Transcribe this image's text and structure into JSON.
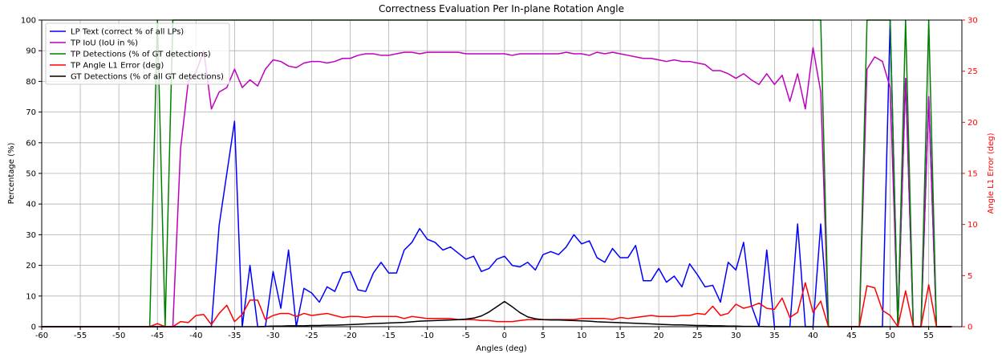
{
  "chart_data": {
    "type": "line",
    "title": "Correctness Evaluation Per In-plane Rotation Angle",
    "xlabel": "Angles (deg)",
    "ylabel": "Percentage (%)",
    "y2label": "Angle L1 Error (deg)",
    "x": [
      -60,
      -59,
      -58,
      -57,
      -56,
      -55,
      -54,
      -53,
      -52,
      -51,
      -50,
      -49,
      -48,
      -47,
      -46,
      -45,
      -44,
      -43,
      -42,
      -41,
      -40,
      -39,
      -38,
      -37,
      -36,
      -35,
      -34,
      -33,
      -32,
      -31,
      -30,
      -29,
      -28,
      -27,
      -26,
      -25,
      -24,
      -23,
      -22,
      -21,
      -20,
      -19,
      -18,
      -17,
      -16,
      -15,
      -14,
      -13,
      -12,
      -11,
      -10,
      -9,
      -8,
      -7,
      -6,
      -5,
      -4,
      -3,
      -2,
      -1,
      0,
      1,
      2,
      3,
      4,
      5,
      6,
      7,
      8,
      9,
      10,
      11,
      12,
      13,
      14,
      15,
      16,
      17,
      18,
      19,
      20,
      21,
      22,
      23,
      24,
      25,
      26,
      27,
      28,
      29,
      30,
      31,
      32,
      33,
      34,
      35,
      36,
      37,
      38,
      39,
      40,
      41,
      42,
      43,
      44,
      45,
      46,
      47,
      48,
      49,
      50,
      51,
      52,
      53,
      54,
      55,
      56,
      57,
      58
    ],
    "xlim": [
      -60,
      59.3
    ],
    "xticks": [
      -60,
      -55,
      -50,
      -45,
      -40,
      -35,
      -30,
      -25,
      -20,
      -15,
      -10,
      -5,
      0,
      5,
      10,
      15,
      20,
      25,
      30,
      35,
      40,
      45,
      50,
      55
    ],
    "ylim": [
      0,
      100
    ],
    "yticks": [
      0,
      10,
      20,
      30,
      40,
      50,
      60,
      70,
      80,
      90,
      100
    ],
    "y2lim": [
      0,
      30
    ],
    "y2ticks": [
      0,
      5,
      10,
      15,
      20,
      25,
      30
    ],
    "grid": true,
    "legend": "upper left",
    "series": [
      {
        "name": "LP Text (correct % of all LPs)",
        "color": "#0000ff",
        "values": [
          0,
          0,
          0,
          0,
          0,
          0,
          0,
          0,
          0,
          0,
          0,
          0,
          0,
          0,
          0,
          0,
          0,
          0,
          0,
          0,
          0,
          0,
          0,
          33,
          50,
          67,
          0,
          20,
          0,
          0,
          18,
          6,
          25,
          0,
          12.5,
          11,
          8,
          13,
          11.5,
          17.5,
          18,
          12,
          11.5,
          17.5,
          21,
          17.5,
          17.5,
          25,
          27.5,
          32,
          28.5,
          27.5,
          25,
          26,
          24,
          22,
          23,
          18,
          19,
          22,
          23,
          20,
          19.5,
          21,
          18.5,
          23.5,
          24.5,
          23.5,
          26,
          30,
          27,
          28,
          22.5,
          21,
          25.5,
          22.5,
          22.5,
          26.5,
          15,
          15,
          19,
          14.5,
          16.5,
          13,
          20.5,
          17,
          13,
          13.5,
          8,
          21,
          18.5,
          27.5,
          7,
          0,
          25,
          0,
          0,
          0,
          33.5,
          0,
          0,
          33.5,
          0,
          0,
          0,
          0,
          0,
          0,
          0,
          0,
          100,
          0,
          81,
          0,
          0,
          75,
          0,
          0,
          0
        ]
      },
      {
        "name": "TP IoU (IoU in %)",
        "color": "#bf00bf",
        "values": [
          0,
          0,
          0,
          0,
          0,
          0,
          0,
          0,
          0,
          0,
          0,
          0,
          0,
          0,
          0,
          0,
          0,
          0,
          58,
          80,
          83,
          90,
          71,
          76.5,
          78,
          84,
          78,
          80.5,
          78.5,
          84,
          87,
          86.5,
          85,
          84.5,
          86,
          86.5,
          86.5,
          86,
          86.5,
          87.5,
          87.5,
          88.5,
          89,
          89,
          88.5,
          88.5,
          89,
          89.5,
          89.5,
          89,
          89.5,
          89.5,
          89.5,
          89.5,
          89.5,
          89,
          89,
          89,
          89,
          89,
          89,
          88.5,
          89,
          89,
          89,
          89,
          89,
          89,
          89.5,
          89,
          89,
          88.5,
          89.5,
          89,
          89.5,
          89,
          88.5,
          88,
          87.5,
          87.5,
          87,
          86.5,
          87,
          86.5,
          86.5,
          86,
          85.5,
          83.5,
          83.5,
          82.5,
          81,
          82.5,
          80.5,
          79,
          82.5,
          79,
          82,
          73.5,
          82.5,
          71,
          91,
          76.5,
          0,
          0,
          0,
          0,
          0,
          84,
          88,
          86.5,
          78,
          0,
          81,
          0,
          0,
          75,
          0,
          0,
          0
        ]
      },
      {
        "name": "TP Detections (% of GT detections)",
        "color": "#008000",
        "values": [
          0,
          0,
          0,
          0,
          0,
          0,
          0,
          0,
          0,
          0,
          0,
          0,
          0,
          0,
          0,
          100,
          0,
          100,
          100,
          100,
          100,
          100,
          100,
          100,
          100,
          100,
          100,
          100,
          100,
          100,
          100,
          100,
          100,
          100,
          100,
          100,
          100,
          100,
          100,
          100,
          100,
          100,
          100,
          100,
          100,
          100,
          100,
          100,
          100,
          100,
          100,
          100,
          100,
          100,
          100,
          100,
          100,
          100,
          100,
          100,
          100,
          100,
          100,
          100,
          100,
          100,
          100,
          100,
          100,
          100,
          100,
          100,
          100,
          100,
          100,
          100,
          100,
          100,
          100,
          100,
          100,
          100,
          100,
          100,
          100,
          100,
          100,
          100,
          100,
          100,
          100,
          100,
          100,
          100,
          100,
          100,
          100,
          100,
          100,
          100,
          100,
          100,
          0,
          0,
          0,
          0,
          0,
          100,
          100,
          100,
          100,
          0,
          100,
          0,
          0,
          100,
          0,
          0,
          0
        ]
      },
      {
        "name": "TP Angle L1 Error (deg)",
        "color": "#ff0000",
        "axis": "y2",
        "values": [
          0,
          0,
          0,
          0,
          0,
          0,
          0,
          0,
          0,
          0,
          0,
          0,
          0,
          0,
          0,
          0.3,
          0,
          0,
          0.5,
          0.4,
          1.1,
          1.2,
          0.2,
          1.3,
          2.1,
          0.5,
          1.2,
          2.6,
          2.6,
          0.7,
          1.1,
          1.3,
          1.3,
          1.0,
          1.3,
          1.1,
          1.2,
          1.3,
          1.1,
          0.9,
          1.0,
          1.0,
          0.9,
          1.0,
          1.0,
          1.0,
          1.0,
          0.8,
          1.0,
          0.9,
          0.8,
          0.8,
          0.8,
          0.8,
          0.7,
          0.7,
          0.7,
          0.6,
          0.6,
          0.5,
          0.5,
          0.5,
          0.6,
          0.7,
          0.7,
          0.7,
          0.7,
          0.7,
          0.7,
          0.7,
          0.8,
          0.8,
          0.8,
          0.8,
          0.7,
          0.9,
          0.8,
          0.9,
          1.0,
          1.1,
          1.0,
          1.0,
          1.0,
          1.1,
          1.1,
          1.3,
          1.2,
          2.0,
          1.1,
          1.3,
          2.2,
          1.8,
          2.0,
          2.3,
          1.8,
          1.7,
          2.8,
          0.9,
          1.4,
          4.3,
          1.4,
          2.5,
          0,
          0,
          0,
          0,
          0,
          4.0,
          3.8,
          1.6,
          1.1,
          0,
          3.5,
          0,
          0,
          4.1,
          0,
          0,
          0
        ]
      },
      {
        "name": "GT Detections (% of all GT detections)",
        "color": "#000000",
        "values": [
          0,
          0,
          0,
          0,
          0,
          0,
          0,
          0,
          0,
          0,
          0,
          0,
          0,
          0,
          0,
          0,
          0,
          0,
          0,
          0,
          0,
          0,
          0,
          0,
          0,
          0,
          0,
          0,
          0,
          0.1,
          0.2,
          0.2,
          0.3,
          0.3,
          0.3,
          0.4,
          0.4,
          0.5,
          0.5,
          0.6,
          0.7,
          0.8,
          0.9,
          1.0,
          1.1,
          1.2,
          1.3,
          1.4,
          1.6,
          1.8,
          1.9,
          2.0,
          2.1,
          2.2,
          2.3,
          2.5,
          2.8,
          3.5,
          4.8,
          6.5,
          8.2,
          6.5,
          4.6,
          3.2,
          2.6,
          2.3,
          2.2,
          2.2,
          2.1,
          2.0,
          1.9,
          1.8,
          1.6,
          1.5,
          1.4,
          1.3,
          1.2,
          1.1,
          1.0,
          0.9,
          0.8,
          0.7,
          0.6,
          0.6,
          0.5,
          0.4,
          0.4,
          0.3,
          0.3,
          0.2,
          0.2,
          0.1,
          0.1,
          0.1,
          0,
          0,
          0,
          0,
          0,
          0,
          0,
          0,
          0,
          0,
          0,
          0,
          0,
          0,
          0,
          0,
          0,
          0,
          0,
          0,
          0,
          0,
          0,
          0,
          0
        ]
      }
    ]
  }
}
